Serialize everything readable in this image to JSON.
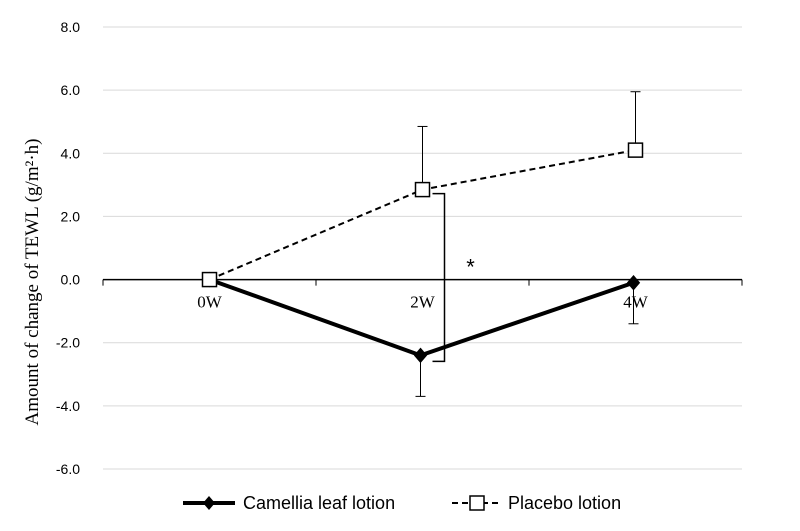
{
  "chart_data": {
    "type": "line",
    "categories": [
      "0W",
      "2W",
      "4W"
    ],
    "ylabel": "Amount of change of  TEWL (g/m²·h)",
    "ylim": [
      -6.0,
      8.0
    ],
    "yticks": [
      "8.0",
      "6.0",
      "4.0",
      "2.0",
      "0.0",
      "-2.0",
      "-4.0",
      "-6.0"
    ],
    "ytick_values": [
      8,
      6,
      4,
      2,
      0,
      -2,
      -4,
      -6
    ],
    "grid": true,
    "legend_position": "bottom",
    "series": [
      {
        "name": "Camellia leaf lotion",
        "values": [
          0.0,
          -2.4,
          -0.1
        ],
        "error": [
          0.0,
          1.3,
          1.3
        ],
        "style": "solid",
        "marker": "diamond",
        "color": "#000000"
      },
      {
        "name": "Placebo lotion",
        "values": [
          0.0,
          2.85,
          4.1
        ],
        "error": [
          0.0,
          2.0,
          1.85
        ],
        "style": "dashed",
        "marker": "square-open",
        "color": "#000000"
      }
    ],
    "annotations": [
      {
        "text": "*",
        "category": "2W",
        "between": [
          "Camellia leaf lotion",
          "Placebo lotion"
        ]
      }
    ]
  }
}
